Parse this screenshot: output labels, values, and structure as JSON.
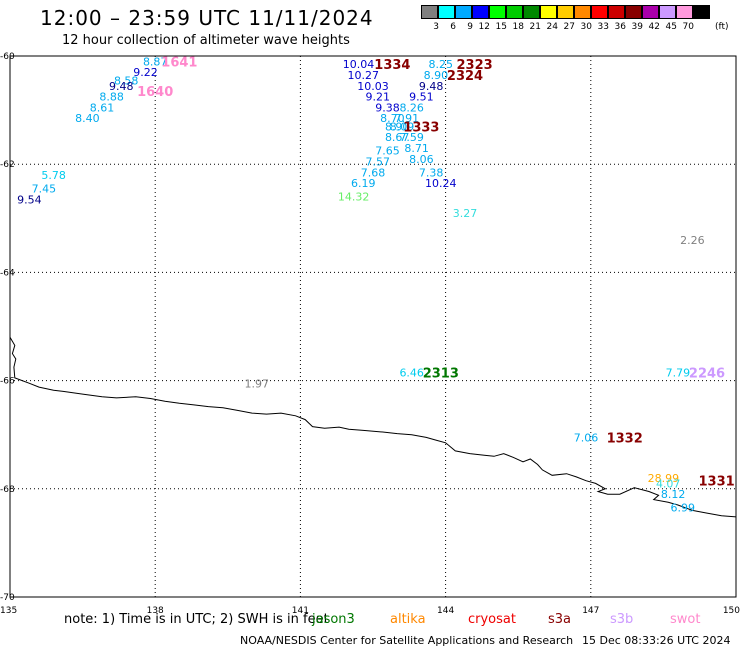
{
  "title": "12:00 – 23:59 UTC 11/11/2024",
  "subtitle": "12 hour collection of altimeter wave heights",
  "colorbar": {
    "unit": "(ft)",
    "bins": [
      {
        "label": "3",
        "color": "#808080"
      },
      {
        "label": "6",
        "color": "#00ffff"
      },
      {
        "label": "9",
        "color": "#00aaff"
      },
      {
        "label": "12",
        "color": "#0000ff"
      },
      {
        "label": "15",
        "color": "#00ff00"
      },
      {
        "label": "18",
        "color": "#00cc00"
      },
      {
        "label": "21",
        "color": "#008800"
      },
      {
        "label": "24",
        "color": "#ffff00"
      },
      {
        "label": "27",
        "color": "#ffcc00"
      },
      {
        "label": "30",
        "color": "#ff8800"
      },
      {
        "label": "33",
        "color": "#ff0000"
      },
      {
        "label": "36",
        "color": "#cc0000"
      },
      {
        "label": "39",
        "color": "#880000"
      },
      {
        "label": "42",
        "color": "#aa00aa"
      },
      {
        "label": "45",
        "color": "#cc99ff"
      },
      {
        "label": "70",
        "color": "#ff99dd"
      },
      {
        "label": "",
        "color": "#000000"
      }
    ]
  },
  "axes": {
    "lon_ticks": [
      "135",
      "138",
      "141",
      "144",
      "147",
      "150"
    ],
    "lat_ticks": [
      "-60",
      "-62",
      "-64",
      "-66",
      "-68",
      "-70"
    ],
    "lon_range": [
      135,
      150
    ],
    "lat_range": [
      -70,
      -60
    ]
  },
  "wave_heights": [
    {
      "v": "8.87",
      "lon": 138.0,
      "lat": -60.1,
      "c": "#00aaee"
    },
    {
      "v": "9.22",
      "lon": 137.8,
      "lat": -60.3,
      "c": "#0000cc"
    },
    {
      "v": "8.58",
      "lon": 137.4,
      "lat": -60.45,
      "c": "#00aaee"
    },
    {
      "v": "9.48",
      "lon": 137.3,
      "lat": -60.55,
      "c": "#000088"
    },
    {
      "v": "8.88",
      "lon": 137.1,
      "lat": -60.75,
      "c": "#00aaee"
    },
    {
      "v": "8.61",
      "lon": 136.9,
      "lat": -60.95,
      "c": "#00aaee"
    },
    {
      "v": "8.40",
      "lon": 136.6,
      "lat": -61.15,
      "c": "#00aaee"
    },
    {
      "v": "5.78",
      "lon": 135.9,
      "lat": -62.2,
      "c": "#00ccee"
    },
    {
      "v": "7.45",
      "lon": 135.7,
      "lat": -62.45,
      "c": "#00aaee"
    },
    {
      "v": "9.54",
      "lon": 135.4,
      "lat": -62.65,
      "c": "#000088"
    },
    {
      "v": "10.04",
      "lon": 142.2,
      "lat": -60.15,
      "c": "#0000cc"
    },
    {
      "v": "10.27",
      "lon": 142.3,
      "lat": -60.35,
      "c": "#0000cc"
    },
    {
      "v": "10.03",
      "lon": 142.5,
      "lat": -60.55,
      "c": "#0000cc"
    },
    {
      "v": "9.21",
      "lon": 142.6,
      "lat": -60.75,
      "c": "#0000cc"
    },
    {
      "v": "9.38",
      "lon": 142.8,
      "lat": -60.95,
      "c": "#0000cc"
    },
    {
      "v": "8.70",
      "lon": 142.9,
      "lat": -61.15,
      "c": "#00aaee"
    },
    {
      "v": "8.90",
      "lon": 143.0,
      "lat": -61.3,
      "c": "#00aaee"
    },
    {
      "v": "8.67",
      "lon": 143.0,
      "lat": -61.5,
      "c": "#00aaee"
    },
    {
      "v": "7.65",
      "lon": 142.8,
      "lat": -61.75,
      "c": "#00aaee"
    },
    {
      "v": "7.57",
      "lon": 142.6,
      "lat": -61.95,
      "c": "#00aaee"
    },
    {
      "v": "7.68",
      "lon": 142.5,
      "lat": -62.15,
      "c": "#00aaee"
    },
    {
      "v": "6.19",
      "lon": 142.3,
      "lat": -62.35,
      "c": "#00aaee"
    },
    {
      "v": "14.32",
      "lon": 142.1,
      "lat": -62.6,
      "c": "#66ee66"
    },
    {
      "v": "8.25",
      "lon": 143.9,
      "lat": -60.15,
      "c": "#00aaee"
    },
    {
      "v": "8.90",
      "lon": 143.8,
      "lat": -60.35,
      "c": "#00aaee"
    },
    {
      "v": "9.48",
      "lon": 143.7,
      "lat": -60.55,
      "c": "#000088"
    },
    {
      "v": "9.51",
      "lon": 143.5,
      "lat": -60.75,
      "c": "#0000cc"
    },
    {
      "v": "8.26",
      "lon": 143.3,
      "lat": -60.95,
      "c": "#00aaee"
    },
    {
      "v": "7.91",
      "lon": 143.2,
      "lat": -61.15,
      "c": "#00aaee"
    },
    {
      "v": "8.09",
      "lon": 143.1,
      "lat": -61.3,
      "c": "#00aaee"
    },
    {
      "v": "7.59",
      "lon": 143.3,
      "lat": -61.5,
      "c": "#00aaee"
    },
    {
      "v": "8.71",
      "lon": 143.4,
      "lat": -61.7,
      "c": "#00aaee"
    },
    {
      "v": "8.06",
      "lon": 143.5,
      "lat": -61.9,
      "c": "#00aaee"
    },
    {
      "v": "7.38",
      "lon": 143.7,
      "lat": -62.15,
      "c": "#00aaee"
    },
    {
      "v": "10.24",
      "lon": 143.9,
      "lat": -62.35,
      "c": "#0000cc"
    },
    {
      "v": "3.27",
      "lon": 144.4,
      "lat": -62.9,
      "c": "#33dddd"
    },
    {
      "v": "2.26",
      "lon": 149.1,
      "lat": -63.4,
      "c": "#808080"
    },
    {
      "v": "1.97",
      "lon": 140.1,
      "lat": -66.05,
      "c": "#808080"
    },
    {
      "v": "6.46",
      "lon": 143.3,
      "lat": -65.85,
      "c": "#00ccee"
    },
    {
      "v": "7.79",
      "lon": 148.8,
      "lat": -65.85,
      "c": "#00ccee"
    },
    {
      "v": "7.06",
      "lon": 146.9,
      "lat": -67.05,
      "c": "#00aaee"
    },
    {
      "v": "28.99",
      "lon": 148.5,
      "lat": -67.8,
      "c": "#ffaa00"
    },
    {
      "v": "4.07",
      "lon": 148.6,
      "lat": -67.9,
      "c": "#33dddd"
    },
    {
      "v": "8.12",
      "lon": 148.7,
      "lat": -68.1,
      "c": "#00aaee"
    },
    {
      "v": "6.99",
      "lon": 148.9,
      "lat": -68.35,
      "c": "#00aaee"
    }
  ],
  "pass_labels": [
    {
      "t": "1641",
      "lon": 138.5,
      "lat": -60.1,
      "c": "#ff88cc"
    },
    {
      "t": "1640",
      "lon": 138.0,
      "lat": -60.65,
      "c": "#ff88cc"
    },
    {
      "t": "1334",
      "lon": 142.9,
      "lat": -60.15,
      "c": "#880000"
    },
    {
      "t": "2323",
      "lon": 144.6,
      "lat": -60.15,
      "c": "#880000"
    },
    {
      "t": "2324",
      "lon": 144.4,
      "lat": -60.35,
      "c": "#880000"
    },
    {
      "t": "1333",
      "lon": 143.5,
      "lat": -61.3,
      "c": "#880000"
    },
    {
      "t": "2313",
      "lon": 143.9,
      "lat": -65.85,
      "c": "#007700"
    },
    {
      "t": "2246",
      "lon": 149.4,
      "lat": -65.85,
      "c": "#cc99ff"
    },
    {
      "t": "1332",
      "lon": 147.7,
      "lat": -67.05,
      "c": "#880000"
    },
    {
      "t": "1331",
      "lon": 149.6,
      "lat": -67.85,
      "c": "#880000"
    }
  ],
  "footer": {
    "note": "note:  1) Time is in UTC; 2) SWH is in feet",
    "satellites": [
      {
        "name": "jason3",
        "color": "#007700"
      },
      {
        "name": "altika",
        "color": "#ff8800"
      },
      {
        "name": "cryosat",
        "color": "#ee0000"
      },
      {
        "name": "s3a",
        "color": "#880000"
      },
      {
        "name": "s3b",
        "color": "#cc99ff"
      },
      {
        "name": "swot",
        "color": "#ff88cc"
      }
    ],
    "credit": "NOAA/NESDIS Center for Satellite Applications and Research",
    "timestamp": "15 Dec 08:33:26 UTC 2024"
  }
}
